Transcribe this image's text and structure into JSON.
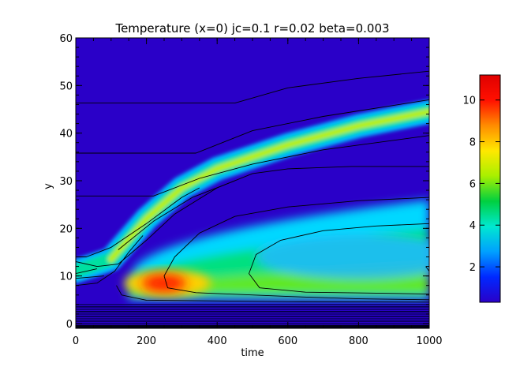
{
  "chart_data": {
    "type": "heatmap",
    "title": "Temperature (x=0) jc=0.1 r=0.02 beta=0.003",
    "xlabel": "time",
    "ylabel": "y",
    "xlim": [
      0,
      1000
    ],
    "ylim": [
      -1,
      60
    ],
    "x_ticks": [
      "0",
      "200",
      "400",
      "600",
      "800",
      "1000"
    ],
    "y_ticks": [
      "0",
      "10",
      "20",
      "30",
      "40",
      "50",
      "60"
    ],
    "colorbar": {
      "min": 0.3,
      "max": 11.2,
      "ticks": [
        "2",
        "4",
        "6",
        "8",
        "10"
      ],
      "colormap": [
        "#2a00c8",
        "#0028ff",
        "#00a0ff",
        "#00e8d0",
        "#00d040",
        "#a8f000",
        "#ffe800",
        "#ff8c00",
        "#ff1000",
        "#e00000"
      ]
    },
    "background_value": 0.9,
    "features": [
      {
        "name": "hot spot",
        "time": 250,
        "y": 8.5,
        "peak": 11
      },
      {
        "name": "diagonal band",
        "path": [
          [
            0,
            11
          ],
          [
            100,
            13.5
          ],
          [
            200,
            22
          ],
          [
            300,
            28.5
          ],
          [
            400,
            32.5
          ],
          [
            500,
            35
          ],
          [
            600,
            37.5
          ],
          [
            700,
            39.5
          ],
          [
            800,
            41.5
          ],
          [
            900,
            43
          ],
          [
            1000,
            44.5
          ]
        ],
        "peak": 8
      },
      {
        "name": "lower plume",
        "time_range": [
          150,
          1000
        ],
        "y_range": [
          5,
          26
        ],
        "level": 5
      }
    ],
    "contours": [
      {
        "points": [
          [
            0,
            46.3
          ],
          [
            450,
            46.3
          ],
          [
            600,
            49.5
          ],
          [
            800,
            51.5
          ],
          [
            1000,
            53
          ]
        ]
      },
      {
        "points": [
          [
            0,
            35.8
          ],
          [
            340,
            35.8
          ],
          [
            500,
            40.5
          ],
          [
            700,
            43.5
          ],
          [
            1000,
            47
          ]
        ]
      },
      {
        "points": [
          [
            0,
            26.8
          ],
          [
            220,
            26.8
          ],
          [
            350,
            30.5
          ],
          [
            500,
            33.5
          ],
          [
            700,
            36.5
          ],
          [
            1000,
            39.5
          ]
        ]
      },
      {
        "points": [
          [
            120,
            15.5
          ],
          [
            220,
            21.5
          ],
          [
            330,
            26.5
          ],
          [
            450,
            30
          ]
        ]
      },
      {
        "points": [
          [
            0,
            14
          ],
          [
            30,
            14
          ],
          [
            100,
            16
          ],
          [
            200,
            21
          ],
          [
            300,
            26.5
          ],
          [
            350,
            28.5
          ]
        ]
      },
      {
        "points": [
          [
            0,
            13
          ],
          [
            60,
            12
          ],
          [
            120,
            12.5
          ],
          [
            200,
            17.5
          ],
          [
            280,
            23
          ],
          [
            400,
            28.5
          ],
          [
            500,
            31.5
          ],
          [
            600,
            32.5
          ],
          [
            780,
            33
          ],
          [
            1000,
            33
          ]
        ]
      },
      {
        "points": [
          [
            0,
            10.5
          ],
          [
            60,
            11.5
          ]
        ]
      },
      {
        "points": [
          [
            0,
            9.5
          ],
          [
            80,
            10
          ]
        ]
      },
      {
        "points": [
          [
            0,
            8
          ],
          [
            60,
            8.5
          ],
          [
            110,
            11
          ],
          [
            150,
            15
          ],
          [
            190,
            18.5
          ]
        ]
      },
      {
        "points": [
          [
            1000,
            26.5
          ],
          [
            800,
            25.8
          ],
          [
            600,
            24.5
          ],
          [
            450,
            22.5
          ],
          [
            350,
            19
          ],
          [
            280,
            14
          ],
          [
            250,
            10
          ],
          [
            260,
            7.5
          ],
          [
            340,
            6.5
          ],
          [
            600,
            5.7
          ],
          [
            800,
            5.2
          ],
          [
            1000,
            5
          ]
        ]
      },
      {
        "points": [
          [
            1000,
            21
          ],
          [
            850,
            20.5
          ],
          [
            700,
            19.5
          ],
          [
            580,
            17.5
          ],
          [
            510,
            14.5
          ],
          [
            490,
            10.5
          ],
          [
            520,
            7.5
          ],
          [
            650,
            6.6
          ],
          [
            850,
            6.4
          ],
          [
            1000,
            6.2
          ]
        ]
      },
      {
        "points": [
          [
            1000,
            4.5
          ],
          [
            600,
            4.6
          ],
          [
            200,
            4.9
          ],
          [
            130,
            6
          ],
          [
            115,
            8
          ]
        ]
      },
      {
        "points": [
          [
            1000,
            11
          ],
          [
            990,
            12
          ]
        ]
      }
    ]
  }
}
